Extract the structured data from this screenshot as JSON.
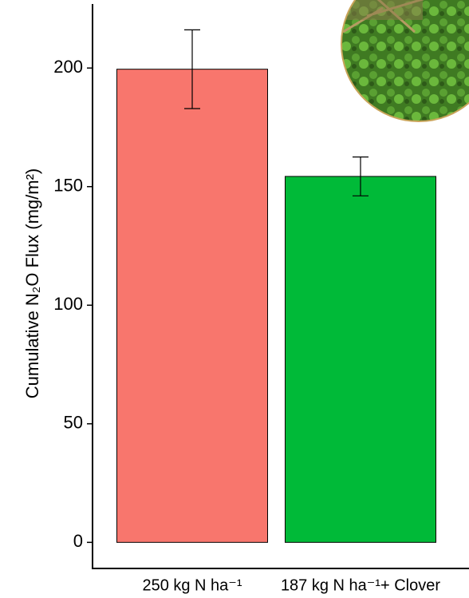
{
  "chart_data": {
    "type": "bar",
    "y_label": "Cumulative N₂O Flux  (mg/m²)",
    "categories": [
      "250 kg N  ha⁻¹",
      "187 kg N  ha⁻¹+ Clover"
    ],
    "values": [
      199.5,
      154.3
    ],
    "errors": [
      16.6,
      8.2
    ],
    "colors": [
      "#F8766D",
      "#00BA38"
    ],
    "ylim": [
      -11,
      227
    ],
    "yticks": [
      0,
      50,
      100,
      150,
      200
    ],
    "grid": false
  }
}
